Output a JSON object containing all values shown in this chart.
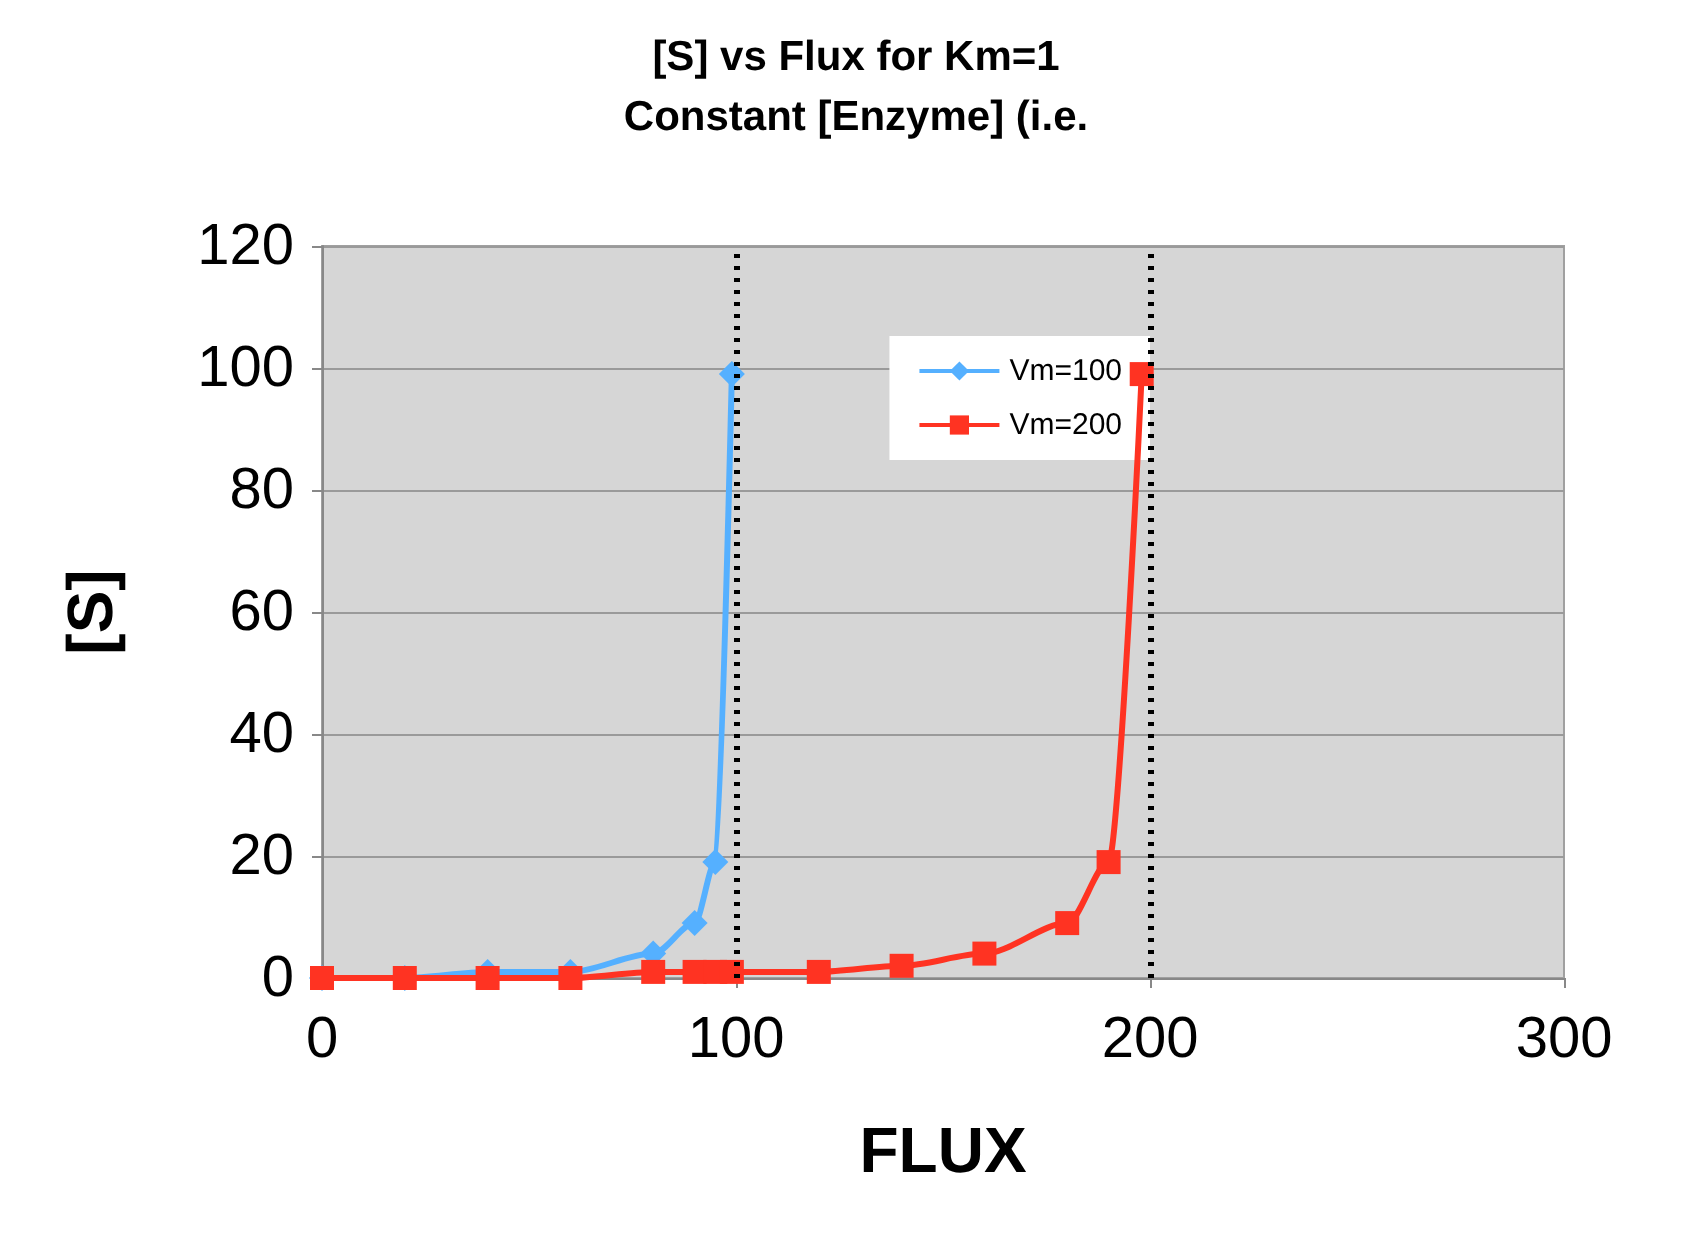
{
  "chart_data": {
    "type": "line",
    "title": "[S] vs Flux for Km=1\nConstant [Enzyme] (i.e.",
    "xlabel": "FLUX",
    "ylabel": "[S]",
    "series": [
      {
        "name": "Vm=100",
        "color": "#55b0ff",
        "marker": "diamond",
        "x": [
          0,
          20,
          40,
          60,
          80,
          90,
          95,
          99
        ],
        "values": [
          0,
          0,
          1,
          1,
          4,
          9,
          19,
          99
        ]
      },
      {
        "name": "Vm=200",
        "color": "#ff3322",
        "marker": "square",
        "x": [
          0,
          20,
          40,
          60,
          80,
          90,
          95,
          99,
          120,
          140,
          160,
          180,
          190,
          198
        ],
        "values": [
          0,
          0,
          0,
          0,
          1,
          1,
          1,
          1,
          1,
          2,
          4,
          9,
          19,
          99
        ]
      }
    ],
    "xlim": [
      0,
      300
    ],
    "xticks": [
      0,
      100,
      200,
      300
    ],
    "ylim": [
      0,
      120
    ],
    "yticks": [
      0,
      20,
      40,
      60,
      80,
      100,
      120
    ],
    "grid": "y",
    "legend": "top right",
    "ref_lines": [
      {
        "axis": "x",
        "value": 100,
        "color": "#000000",
        "line_style": "dotted"
      },
      {
        "axis": "x",
        "value": 200,
        "color": "#000000",
        "line_style": "dotted"
      }
    ]
  }
}
